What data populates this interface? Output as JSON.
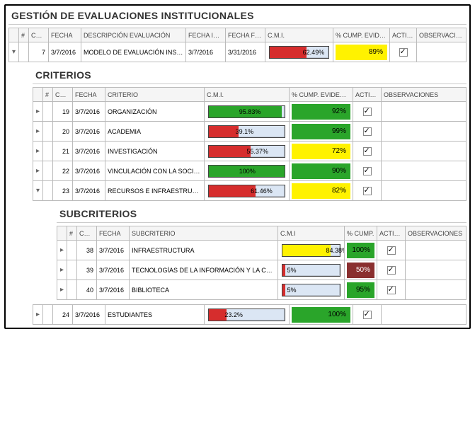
{
  "colors": {
    "green": "#2aa52a",
    "red": "#d62d2d",
    "yellow": "#fff200",
    "darkred": "#8a2f2f",
    "barbg": "#dbe6f4"
  },
  "main": {
    "title": "GESTIÓN DE EVALUACIONES INSTITUCIONALES",
    "headers": {
      "exp": "",
      "num": "#",
      "cod": "CÓD.",
      "fecha": "FECHA",
      "desc": "DESCRIPCIÓN EVALUACIÓN",
      "fini": "FECHA INICIO",
      "ffin": "FECHA FINAL",
      "cmi": "C.M.I.",
      "cump": "% CUMP. EVIDENCIAS",
      "act": "ACTIVO",
      "obs": "OBSERVACIONES"
    },
    "row": {
      "cod": "7",
      "fecha": "3/7/2016",
      "desc": "MODELO DE EVALUACIÓN INSTITUCIONAL",
      "fini": "3/7/2016",
      "ffin": "3/31/2016",
      "cmi_pct": 62.49,
      "cmi_label": "62.49%",
      "cmi_color": "red",
      "cump_pct": "89%",
      "cump_color": "yellow",
      "activo": true
    }
  },
  "criterios": {
    "title": "CRITERIOS",
    "headers": {
      "exp": "",
      "num": "#",
      "cod": "CÓD.",
      "fecha": "FECHA",
      "crit": "CRITERIO",
      "cmi": "C.M.I.",
      "cump": "% CUMP. EVIDENCIAS",
      "act": "ACTIVO",
      "obs": "OBSERVACIONES"
    },
    "rows": [
      {
        "cod": "19",
        "fecha": "3/7/2016",
        "crit": "ORGANIZACIÓN",
        "cmi_pct": 95.83,
        "cmi_label": "95.83%",
        "cmi_color": "green",
        "cump_pct": "92%",
        "cump_color": "green",
        "activo": true
      },
      {
        "cod": "20",
        "fecha": "3/7/2016",
        "crit": "ACADEMIA",
        "cmi_pct": 39.1,
        "cmi_label": "39.1%",
        "cmi_color": "red",
        "cump_pct": "99%",
        "cump_color": "green",
        "activo": true
      },
      {
        "cod": "21",
        "fecha": "3/7/2016",
        "crit": "INVESTIGACIÓN",
        "cmi_pct": 55.37,
        "cmi_label": "55.37%",
        "cmi_color": "red",
        "cump_pct": "72%",
        "cump_color": "yellow",
        "activo": true
      },
      {
        "cod": "22",
        "fecha": "3/7/2016",
        "crit": "VINCULACIÓN CON LA SOCIEDAD",
        "cmi_pct": 100,
        "cmi_label": "100%",
        "cmi_color": "green",
        "cump_pct": "90%",
        "cump_color": "green",
        "activo": true
      },
      {
        "cod": "23",
        "fecha": "3/7/2016",
        "crit": "RECURSOS E INFRAESTRUCTURA",
        "cmi_pct": 61.46,
        "cmi_label": "61.46%",
        "cmi_color": "red",
        "cump_pct": "82%",
        "cump_color": "yellow",
        "activo": true
      }
    ],
    "extra_row": {
      "cod": "24",
      "fecha": "3/7/2016",
      "crit": "ESTUDIANTES",
      "cmi_pct": 23.2,
      "cmi_label": "23.2%",
      "cmi_color": "red",
      "cump_pct": "100%",
      "cump_color": "green",
      "activo": true
    }
  },
  "subcriterios": {
    "title": "SUBCRITERIOS",
    "headers": {
      "exp": "",
      "num": "#",
      "cod": "CÓD.",
      "fecha": "FECHA",
      "sub": "SUBCRITERIO",
      "cmi": "C.M.I",
      "cump": "% CUMP.",
      "act": "ACTIVO",
      "obs": "OBSERVACIONES"
    },
    "rows": [
      {
        "cod": "38",
        "fecha": "3/7/2016",
        "sub": "INFRAESTRUCTURA",
        "cmi_pct": 84.38,
        "cmi_label": "84.38%",
        "cmi_color": "yellow",
        "cump_pct": "100%",
        "cump_color": "green",
        "activo": true
      },
      {
        "cod": "39",
        "fecha": "3/7/2016",
        "sub": "TECNOLOGÍAS DE LA INFORMACIÓN Y LA COMUNICACIÓN",
        "cmi_pct": 5,
        "cmi_label": "5%",
        "cmi_color": "red",
        "cump_pct": "50%",
        "cump_color": "darkred",
        "activo": true
      },
      {
        "cod": "40",
        "fecha": "3/7/2016",
        "sub": "BIBLIOTECA",
        "cmi_pct": 5,
        "cmi_label": "5%",
        "cmi_color": "red",
        "cump_pct": "95%",
        "cump_color": "green",
        "activo": true
      }
    ]
  }
}
